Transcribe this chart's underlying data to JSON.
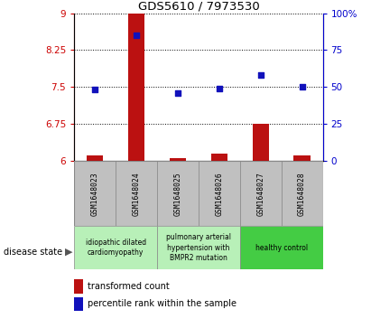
{
  "title": "GDS5610 / 7973530",
  "samples": [
    "GSM1648023",
    "GSM1648024",
    "GSM1648025",
    "GSM1648026",
    "GSM1648027",
    "GSM1648028"
  ],
  "transformed_count": [
    6.1,
    9.0,
    6.05,
    6.15,
    6.75,
    6.1
  ],
  "percentile_rank": [
    48,
    85,
    46,
    49,
    58,
    50
  ],
  "ylim_left": [
    6,
    9
  ],
  "ylim_right": [
    0,
    100
  ],
  "yticks_left": [
    6,
    6.75,
    7.5,
    8.25,
    9
  ],
  "ytick_labels_left": [
    "6",
    "6.75",
    "7.5",
    "8.25",
    "9"
  ],
  "yticks_right": [
    0,
    25,
    50,
    75,
    100
  ],
  "ytick_labels_right": [
    "0",
    "25",
    "50",
    "75",
    "100%"
  ],
  "group_configs": [
    {
      "start": 0,
      "end": 1,
      "label": "idiopathic dilated\ncardiomyopathy",
      "color": "#b8f0b8"
    },
    {
      "start": 2,
      "end": 3,
      "label": "pulmonary arterial\nhypertension with\nBMPR2 mutation",
      "color": "#b8f0b8"
    },
    {
      "start": 4,
      "end": 5,
      "label": "healthy control",
      "color": "#44cc44"
    }
  ],
  "bar_color": "#bb1111",
  "dot_color": "#1111bb",
  "bar_width": 0.4,
  "legend_bar_label": "transformed count",
  "legend_dot_label": "percentile rank within the sample",
  "sample_box_color": "#c0c0c0",
  "sample_box_edge": "#888888"
}
